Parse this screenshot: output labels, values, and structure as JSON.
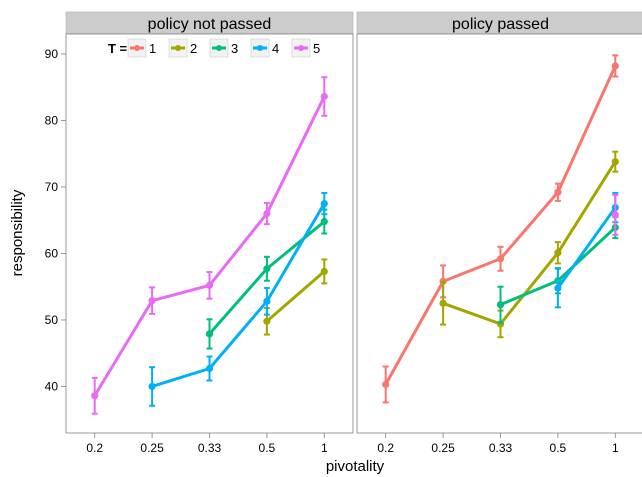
{
  "chart_data": {
    "type": "line",
    "title": "",
    "xlabel": "pivotality",
    "ylabel": "responsibility",
    "categories": [
      "0.2",
      "0.25",
      "0.33",
      "0.5",
      "1"
    ],
    "ylim": [
      33,
      93
    ],
    "yticks": [
      40,
      50,
      60,
      70,
      80,
      90
    ],
    "grid": false,
    "error_bars": true,
    "legend": {
      "title": "T =",
      "position": "top-inside-left-panel",
      "entries": [
        "1",
        "2",
        "3",
        "4",
        "5"
      ]
    },
    "colors": {
      "1": "#F8766D",
      "2": "#A3A500",
      "3": "#00BF7D",
      "4": "#00B0F6",
      "5": "#E76BF3"
    },
    "panels": [
      {
        "name": "policy not passed",
        "series": [
          {
            "name": "2",
            "points": [
              {
                "x": "0.5",
                "y": 49.8,
                "lo": 47.8,
                "hi": 51.8
              },
              {
                "x": "1",
                "y": 57.3,
                "lo": 55.5,
                "hi": 59.1
              }
            ]
          },
          {
            "name": "3",
            "points": [
              {
                "x": "0.33",
                "y": 47.9,
                "lo": 45.7,
                "hi": 50.1
              },
              {
                "x": "0.5",
                "y": 57.7,
                "lo": 55.9,
                "hi": 59.5
              },
              {
                "x": "1",
                "y": 64.8,
                "lo": 63.0,
                "hi": 66.6
              }
            ]
          },
          {
            "name": "4",
            "points": [
              {
                "x": "0.25",
                "y": 40.0,
                "lo": 37.1,
                "hi": 42.9
              },
              {
                "x": "0.33",
                "y": 42.7,
                "lo": 40.9,
                "hi": 44.5
              },
              {
                "x": "0.5",
                "y": 52.8,
                "lo": 50.8,
                "hi": 54.8
              },
              {
                "x": "1",
                "y": 67.5,
                "lo": 65.9,
                "hi": 69.1
              }
            ]
          },
          {
            "name": "5",
            "points": [
              {
                "x": "0.2",
                "y": 38.6,
                "lo": 35.9,
                "hi": 41.3
              },
              {
                "x": "0.25",
                "y": 52.9,
                "lo": 50.9,
                "hi": 54.9
              },
              {
                "x": "0.33",
                "y": 55.2,
                "lo": 53.2,
                "hi": 57.2
              },
              {
                "x": "0.5",
                "y": 66.0,
                "lo": 64.4,
                "hi": 67.6
              },
              {
                "x": "1",
                "y": 83.6,
                "lo": 80.7,
                "hi": 86.5
              }
            ]
          }
        ]
      },
      {
        "name": "policy passed",
        "series": [
          {
            "name": "1",
            "points": [
              {
                "x": "0.2",
                "y": 40.3,
                "lo": 37.6,
                "hi": 43.0
              },
              {
                "x": "0.25",
                "y": 55.8,
                "lo": 53.4,
                "hi": 58.2
              },
              {
                "x": "0.33",
                "y": 59.2,
                "lo": 57.4,
                "hi": 61.0
              },
              {
                "x": "0.5",
                "y": 69.2,
                "lo": 67.9,
                "hi": 70.5
              },
              {
                "x": "1",
                "y": 88.2,
                "lo": 86.6,
                "hi": 89.8
              }
            ]
          },
          {
            "name": "2",
            "points": [
              {
                "x": "0.25",
                "y": 52.5,
                "lo": 49.3,
                "hi": 55.7
              },
              {
                "x": "0.33",
                "y": 49.4,
                "lo": 47.4,
                "hi": 51.4
              },
              {
                "x": "0.5",
                "y": 60.1,
                "lo": 58.5,
                "hi": 61.7
              },
              {
                "x": "1",
                "y": 73.8,
                "lo": 72.3,
                "hi": 75.3
              }
            ]
          },
          {
            "name": "3",
            "points": [
              {
                "x": "0.33",
                "y": 52.3,
                "lo": 49.6,
                "hi": 55.0
              },
              {
                "x": "0.5",
                "y": 55.9,
                "lo": 54.0,
                "hi": 57.8
              },
              {
                "x": "1",
                "y": 63.9,
                "lo": 62.3,
                "hi": 65.5
              }
            ]
          },
          {
            "name": "4",
            "points": [
              {
                "x": "0.5",
                "y": 54.8,
                "lo": 51.9,
                "hi": 57.7
              },
              {
                "x": "1",
                "y": 66.9,
                "lo": 64.7,
                "hi": 69.1
              }
            ]
          },
          {
            "name": "5",
            "points": [
              {
                "x": "1",
                "y": 65.8,
                "lo": 62.8,
                "hi": 68.8
              }
            ]
          }
        ]
      }
    ]
  }
}
